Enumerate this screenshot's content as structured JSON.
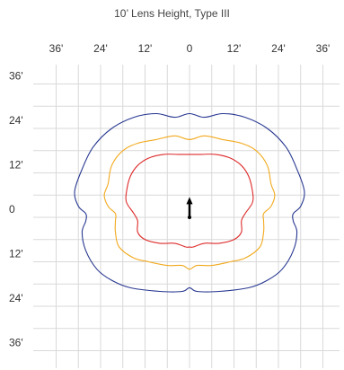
{
  "chart_data": {
    "type": "line",
    "title": "10’ Lens Height, Type III",
    "xlabel": "",
    "ylabel": "",
    "x_tick_labels": [
      "36'",
      "24'",
      "12'",
      "0",
      "12'",
      "24'",
      "36'"
    ],
    "y_tick_labels": [
      "36'",
      "24'",
      "12'",
      "0",
      "12'",
      "24'",
      "36'"
    ],
    "x_tick_values": [
      -36,
      -24,
      -12,
      0,
      12,
      24,
      36
    ],
    "y_tick_values": [
      36,
      24,
      12,
      0,
      -12,
      -24,
      -36
    ],
    "xlim": [
      -40,
      40
    ],
    "ylim": [
      -40,
      40
    ],
    "grid": true,
    "series": [
      {
        "color": "#283891",
        "points": [
          [
            0,
            28
          ],
          [
            4,
            27
          ],
          [
            9,
            28
          ],
          [
            15,
            27
          ],
          [
            21,
            24
          ],
          [
            26,
            19
          ],
          [
            29,
            13
          ],
          [
            31,
            7
          ],
          [
            30,
            3
          ],
          [
            28,
            1
          ],
          [
            28,
            -1
          ],
          [
            29,
            -4
          ],
          [
            28,
            -9
          ],
          [
            25,
            -14
          ],
          [
            21,
            -17
          ],
          [
            16,
            -19
          ],
          [
            8,
            -20
          ],
          [
            2,
            -20
          ],
          [
            0,
            -19
          ],
          [
            -2,
            -20
          ],
          [
            -8,
            -20
          ],
          [
            -16,
            -19
          ],
          [
            -21,
            -17
          ],
          [
            -25,
            -14
          ],
          [
            -28,
            -9
          ],
          [
            -29,
            -4
          ],
          [
            -28,
            -1
          ],
          [
            -28,
            1
          ],
          [
            -30,
            3
          ],
          [
            -31,
            7
          ],
          [
            -29,
            13
          ],
          [
            -26,
            19
          ],
          [
            -21,
            24
          ],
          [
            -15,
            27
          ],
          [
            -9,
            28
          ],
          [
            -4,
            27
          ]
        ]
      },
      {
        "color": "#F2A91D",
        "points": [
          [
            0,
            21
          ],
          [
            4,
            22
          ],
          [
            9,
            21
          ],
          [
            14,
            20
          ],
          [
            18,
            18
          ],
          [
            21,
            14
          ],
          [
            22,
            9
          ],
          [
            23,
            6
          ],
          [
            22,
            3
          ],
          [
            20,
            1
          ],
          [
            20,
            -1
          ],
          [
            20,
            -4
          ],
          [
            19,
            -8
          ],
          [
            15,
            -11
          ],
          [
            11,
            -12
          ],
          [
            6,
            -13
          ],
          [
            2,
            -13
          ],
          [
            0,
            -14
          ],
          [
            -2,
            -13
          ],
          [
            -6,
            -13
          ],
          [
            -11,
            -12
          ],
          [
            -15,
            -11
          ],
          [
            -19,
            -8
          ],
          [
            -20,
            -4
          ],
          [
            -20,
            -1
          ],
          [
            -20,
            1
          ],
          [
            -22,
            3
          ],
          [
            -23,
            6
          ],
          [
            -22,
            9
          ],
          [
            -21,
            14
          ],
          [
            -18,
            18
          ],
          [
            -14,
            20
          ],
          [
            -9,
            21
          ],
          [
            -4,
            22
          ]
        ]
      },
      {
        "color": "#DE2A2A",
        "points": [
          [
            0,
            17
          ],
          [
            3,
            17
          ],
          [
            7,
            17
          ],
          [
            11,
            16
          ],
          [
            14,
            14
          ],
          [
            16,
            11
          ],
          [
            17,
            7
          ],
          [
            17,
            4
          ],
          [
            15,
            1
          ],
          [
            14,
            -1
          ],
          [
            14,
            -4
          ],
          [
            12,
            -6
          ],
          [
            8,
            -7
          ],
          [
            4,
            -7
          ],
          [
            1,
            -8
          ],
          [
            0,
            -8
          ],
          [
            -1,
            -8
          ],
          [
            -4,
            -7
          ],
          [
            -8,
            -7
          ],
          [
            -12,
            -6
          ],
          [
            -14,
            -4
          ],
          [
            -14,
            -1
          ],
          [
            -15,
            1
          ],
          [
            -17,
            4
          ],
          [
            -17,
            7
          ],
          [
            -16,
            11
          ],
          [
            -14,
            14
          ],
          [
            -11,
            16
          ],
          [
            -7,
            17
          ],
          [
            -3,
            17
          ]
        ]
      }
    ],
    "arrow": {
      "x": 0,
      "y_from": 0,
      "y_to": 5,
      "color": "#000000"
    }
  }
}
